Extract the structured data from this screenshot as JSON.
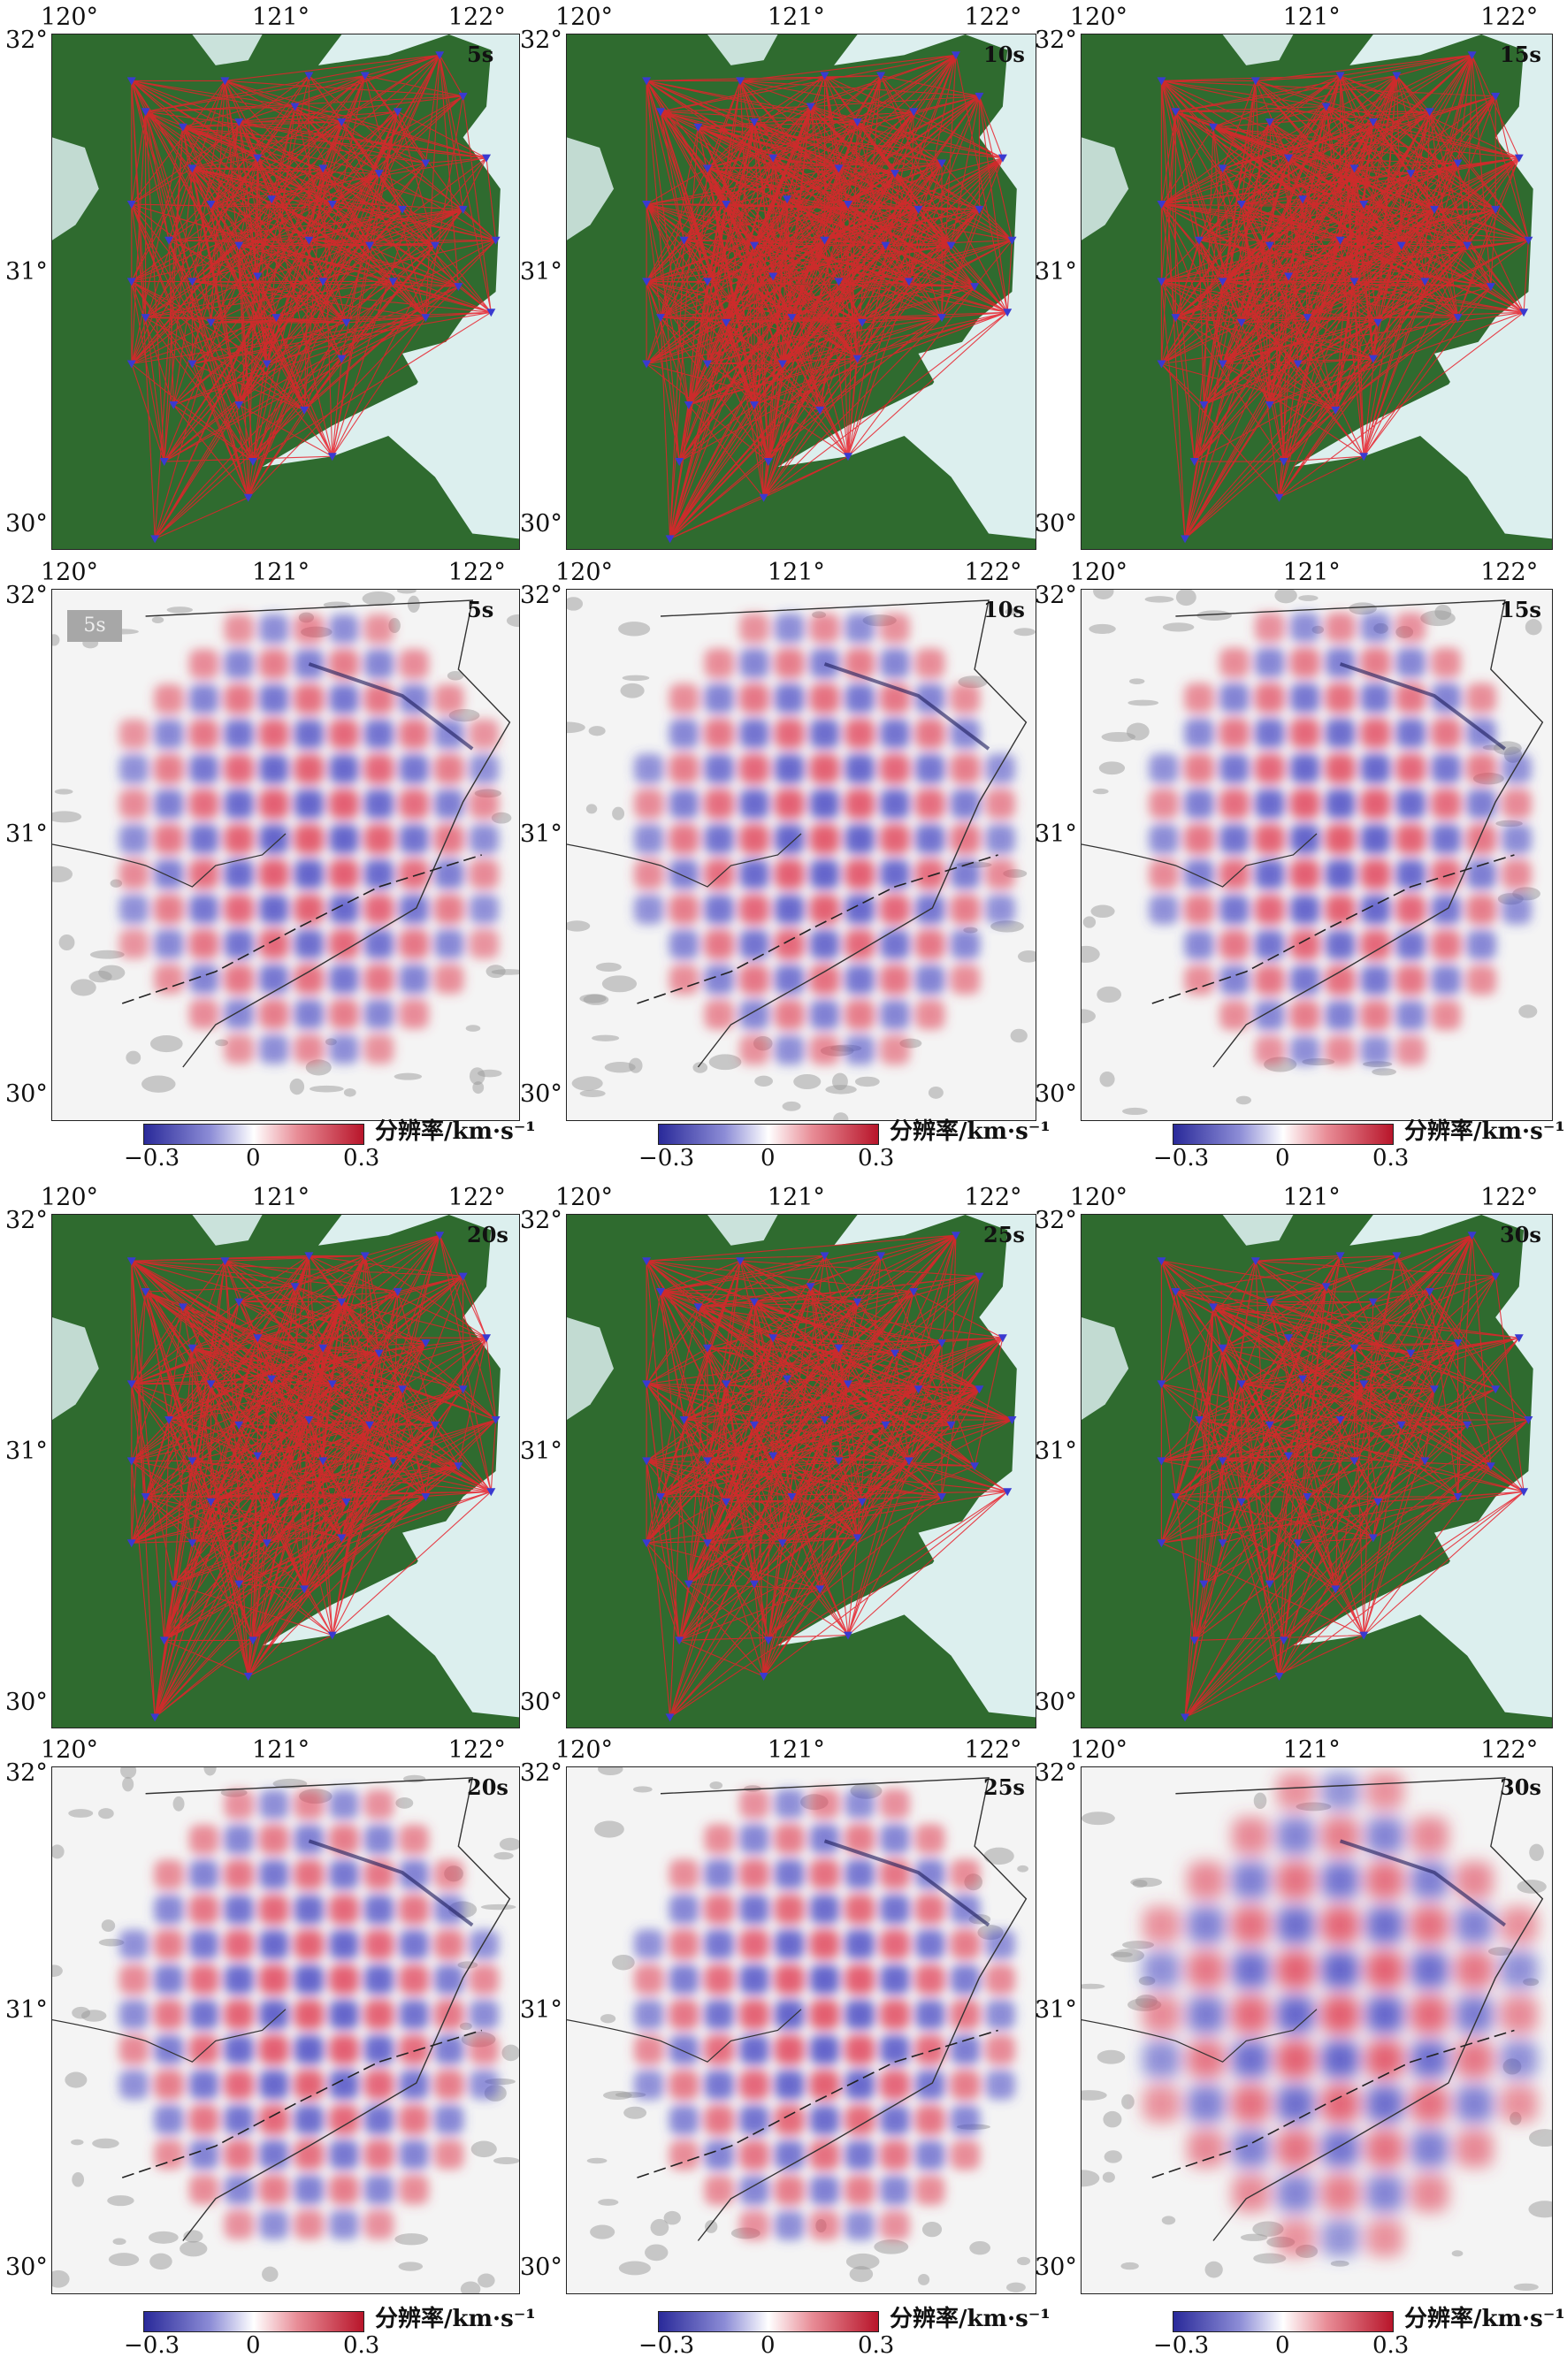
{
  "lon_ticks": [
    "120°",
    "121°",
    "122°"
  ],
  "lat_ticks": [
    "32°",
    "31°",
    "30°"
  ],
  "periods": [
    "5s",
    "10s",
    "15s",
    "20s",
    "25s",
    "30s"
  ],
  "first_panel_chip": "5s",
  "colorbar": {
    "min_label": "−0.3",
    "mid_label": "0",
    "max_label": "0.3",
    "title": "分辨率/km·s⁻¹",
    "colors": {
      "low": "#2a2a9a",
      "mid": "#ffffff",
      "high": "#b8152a"
    }
  },
  "colors": {
    "land": "#2f6b2f",
    "water": "#dcefee",
    "ray": "#e8202a",
    "station": "#3a3ad0"
  }
}
